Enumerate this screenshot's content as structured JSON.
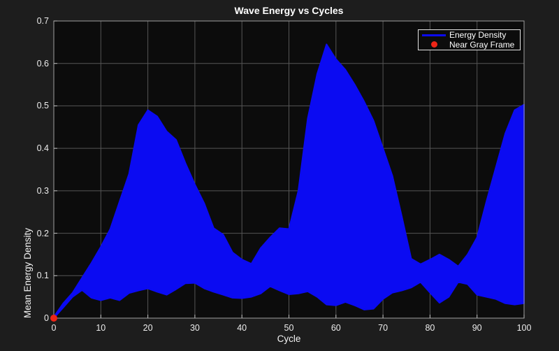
{
  "figure": {
    "background": "#1d1d1d",
    "plot_background": "#0c0c0c",
    "grid_color": "#565656",
    "axis_box_color": "#9f9f9f",
    "tick_mark_color": "#bdbdbd",
    "text_color": "#f2f2f2",
    "title_color": "#ffffff"
  },
  "chart_data": {
    "type": "area",
    "title": "Wave Energy vs Cycles",
    "xlabel": "Cycle",
    "ylabel": "Mean Energy Density",
    "xlim": [
      0,
      100
    ],
    "ylim": [
      0,
      0.7
    ],
    "grid": true,
    "x_ticks": [
      0,
      10,
      20,
      30,
      40,
      50,
      60,
      70,
      80,
      90,
      100
    ],
    "x_tick_labels": [
      "0",
      "10",
      "20",
      "30",
      "40",
      "50",
      "60",
      "70",
      "80",
      "90",
      "100"
    ],
    "y_ticks": [
      0,
      0.1,
      0.2,
      0.3,
      0.4,
      0.5,
      0.6,
      0.7
    ],
    "y_tick_labels": [
      "0",
      "0.1",
      "0.2",
      "0.3",
      "0.4",
      "0.5",
      "0.6",
      "0.7"
    ],
    "legend": {
      "position": "top-right",
      "entries": [
        {
          "label": "Energy Density",
          "swatch": "line",
          "color": "#0b0bf2"
        },
        {
          "label": "Near Gray Frame",
          "swatch": "dot",
          "color": "#ee2517"
        }
      ]
    },
    "series": [
      {
        "name": "Energy Density",
        "type": "filled-band",
        "color": "#0b0bf2",
        "x": [
          0,
          2,
          4,
          6,
          8,
          10,
          12,
          14,
          16,
          18,
          20,
          22,
          24,
          26,
          28,
          30,
          32,
          34,
          36,
          38,
          40,
          42,
          44,
          46,
          48,
          50,
          52,
          54,
          56,
          58,
          60,
          62,
          64,
          66,
          68,
          70,
          72,
          74,
          76,
          78,
          80,
          82,
          84,
          86,
          88,
          90,
          92,
          94,
          96,
          98,
          100
        ],
        "upper": [
          0.003,
          0.035,
          0.06,
          0.095,
          0.13,
          0.168,
          0.21,
          0.275,
          0.34,
          0.455,
          0.49,
          0.475,
          0.44,
          0.42,
          0.365,
          0.315,
          0.27,
          0.212,
          0.197,
          0.155,
          0.138,
          0.128,
          0.165,
          0.19,
          0.212,
          0.21,
          0.3,
          0.47,
          0.575,
          0.645,
          0.61,
          0.585,
          0.55,
          0.51,
          0.465,
          0.4,
          0.335,
          0.24,
          0.14,
          0.127,
          0.138,
          0.15,
          0.138,
          0.122,
          0.15,
          0.19,
          0.275,
          0.355,
          0.435,
          0.49,
          0.503
        ],
        "lower": [
          0.0,
          0.025,
          0.05,
          0.066,
          0.048,
          0.042,
          0.048,
          0.042,
          0.059,
          0.065,
          0.07,
          0.062,
          0.055,
          0.068,
          0.082,
          0.083,
          0.07,
          0.062,
          0.055,
          0.048,
          0.047,
          0.05,
          0.058,
          0.075,
          0.065,
          0.056,
          0.058,
          0.063,
          0.05,
          0.032,
          0.03,
          0.038,
          0.03,
          0.02,
          0.022,
          0.045,
          0.06,
          0.065,
          0.072,
          0.085,
          0.06,
          0.036,
          0.05,
          0.085,
          0.08,
          0.055,
          0.05,
          0.045,
          0.035,
          0.032,
          0.035
        ]
      },
      {
        "name": "Near Gray Frame",
        "type": "scatter",
        "color": "#ee2517",
        "marker": "filled-circle",
        "points": [
          [
            0,
            0
          ]
        ]
      }
    ]
  }
}
